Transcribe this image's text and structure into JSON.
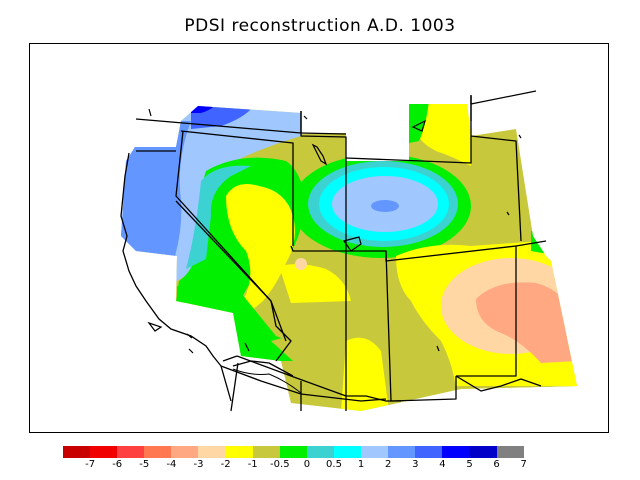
{
  "title": "PDSI reconstruction A.D. 1003",
  "legend": {
    "colors": [
      "#c80000",
      "#f00000",
      "#ff4040",
      "#ff7850",
      "#ffa882",
      "#ffd7a5",
      "#ffff00",
      "#c8c83c",
      "#00f000",
      "#3cd2d2",
      "#00ffff",
      "#a0c8ff",
      "#6496ff",
      "#4064ff",
      "#0000ff",
      "#0000c8",
      "#808080"
    ],
    "ticks": [
      "-7",
      "-6",
      "-5",
      "-4",
      "-3",
      "-2",
      "-1",
      "-0.5",
      "0",
      "0.5",
      "1",
      "2",
      "3",
      "4",
      "5",
      "6",
      "7"
    ]
  }
}
